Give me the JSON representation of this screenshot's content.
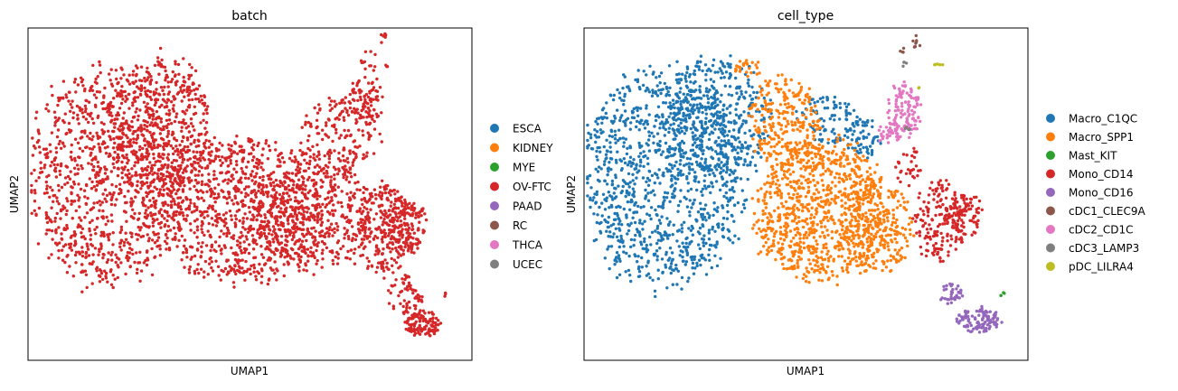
{
  "chart_data": [
    {
      "type": "scatter",
      "title": "batch",
      "xlabel": "UMAP1",
      "ylabel": "UMAP2",
      "grid": false,
      "axis_ticks": false,
      "xlim": [
        0,
        100
      ],
      "ylim": [
        0,
        100
      ],
      "legend_position": "right",
      "legend": [
        {
          "label": "ESCA",
          "color": "#1f77b4"
        },
        {
          "label": "KIDNEY",
          "color": "#ff7f0e"
        },
        {
          "label": "MYE",
          "color": "#2ca02c"
        },
        {
          "label": "OV-FTC",
          "color": "#d62728"
        },
        {
          "label": "PAAD",
          "color": "#9467bd"
        },
        {
          "label": "RC",
          "color": "#8c564b"
        },
        {
          "label": "THCA",
          "color": "#e377c2"
        },
        {
          "label": "UCEC",
          "color": "#7f7f7f"
        }
      ],
      "series": [
        {
          "name": "OV-FTC",
          "color": "#d62728",
          "regions": [
            {
              "cx": 18,
              "cy": 55,
              "rx": 18,
              "ry": 33,
              "n": 1000
            },
            {
              "cx": 30,
              "cy": 70,
              "rx": 12,
              "ry": 22,
              "n": 500
            },
            {
              "cx": 48,
              "cy": 45,
              "rx": 20,
              "ry": 22,
              "n": 900
            },
            {
              "cx": 64,
              "cy": 44,
              "rx": 14,
              "ry": 18,
              "n": 500
            },
            {
              "cx": 70,
              "cy": 68,
              "rx": 9,
              "ry": 12,
              "n": 160
            },
            {
              "cx": 76,
              "cy": 78,
              "rx": 4,
              "ry": 8,
              "n": 90
            },
            {
              "cx": 80,
              "cy": 40,
              "rx": 6,
              "ry": 14,
              "n": 220
            },
            {
              "cx": 85,
              "cy": 40,
              "rx": 5,
              "ry": 9,
              "n": 150
            },
            {
              "cx": 85,
              "cy": 20,
              "rx": 4,
              "ry": 6,
              "n": 60
            },
            {
              "cx": 89,
              "cy": 11,
              "rx": 4,
              "ry": 4,
              "n": 120
            },
            {
              "cx": 77,
              "cy": 90,
              "rx": 2,
              "ry": 4,
              "n": 12
            },
            {
              "cx": 80,
              "cy": 97,
              "rx": 1,
              "ry": 1.5,
              "n": 6
            },
            {
              "cx": 81,
              "cy": 89,
              "rx": 0.8,
              "ry": 1,
              "n": 3
            },
            {
              "cx": 94,
              "cy": 20,
              "rx": 0.8,
              "ry": 0.8,
              "n": 3
            }
          ]
        }
      ]
    },
    {
      "type": "scatter",
      "title": "cell_type",
      "xlabel": "UMAP1",
      "ylabel": "UMAP2",
      "grid": false,
      "axis_ticks": false,
      "xlim": [
        0,
        100
      ],
      "ylim": [
        0,
        100
      ],
      "legend_position": "right",
      "legend": [
        {
          "label": "Macro_C1QC",
          "color": "#1f77b4"
        },
        {
          "label": "Macro_SPP1",
          "color": "#ff7f0e"
        },
        {
          "label": "Mast_KIT",
          "color": "#2ca02c"
        },
        {
          "label": "Mono_CD14",
          "color": "#d62728"
        },
        {
          "label": "Mono_CD16",
          "color": "#9467bd"
        },
        {
          "label": "cDC1_CLEC9A",
          "color": "#8c564b"
        },
        {
          "label": "cDC2_CD1C",
          "color": "#e377c2"
        },
        {
          "label": "cDC3_LAMP3",
          "color": "#7f7f7f"
        },
        {
          "label": "pDC_LILRA4",
          "color": "#bcbd22"
        }
      ],
      "series": [
        {
          "name": "Macro_C1QC",
          "color": "#1f77b4",
          "regions": [
            {
              "cx": 18,
              "cy": 55,
              "rx": 18,
              "ry": 33,
              "n": 1100
            },
            {
              "cx": 30,
              "cy": 72,
              "rx": 12,
              "ry": 20,
              "n": 400
            },
            {
              "cx": 55,
              "cy": 72,
              "rx": 7,
              "ry": 8,
              "n": 90
            },
            {
              "cx": 63,
              "cy": 67,
              "rx": 4,
              "ry": 6,
              "n": 60
            }
          ]
        },
        {
          "name": "Macro_SPP1",
          "color": "#ff7f0e",
          "regions": [
            {
              "cx": 53,
              "cy": 45,
              "rx": 15,
              "ry": 22,
              "n": 900
            },
            {
              "cx": 45,
              "cy": 72,
              "rx": 8,
              "ry": 14,
              "n": 250
            },
            {
              "cx": 66,
              "cy": 40,
              "rx": 8,
              "ry": 14,
              "n": 250
            },
            {
              "cx": 37,
              "cy": 88,
              "rx": 3,
              "ry": 3,
              "n": 25
            }
          ]
        },
        {
          "name": "Mono_CD14",
          "color": "#d62728",
          "regions": [
            {
              "cx": 80,
              "cy": 42,
              "rx": 6,
              "ry": 12,
              "n": 180
            },
            {
              "cx": 86,
              "cy": 44,
              "rx": 4,
              "ry": 7,
              "n": 80
            },
            {
              "cx": 73,
              "cy": 58,
              "rx": 3,
              "ry": 6,
              "n": 30
            }
          ]
        },
        {
          "name": "Mono_CD16",
          "color": "#9467bd",
          "regions": [
            {
              "cx": 89,
              "cy": 12,
              "rx": 5,
              "ry": 4,
              "n": 110
            },
            {
              "cx": 83,
              "cy": 20,
              "rx": 3,
              "ry": 3,
              "n": 35
            }
          ]
        },
        {
          "name": "Mast_KIT",
          "color": "#2ca02c",
          "regions": [
            {
              "cx": 94,
              "cy": 20,
              "rx": 0.8,
              "ry": 0.6,
              "n": 4
            }
          ]
        },
        {
          "name": "cDC1_CLEC9A",
          "color": "#8c564b",
          "regions": [
            {
              "cx": 75,
              "cy": 96,
              "rx": 1,
              "ry": 2,
              "n": 8
            },
            {
              "cx": 72,
              "cy": 93,
              "rx": 0.8,
              "ry": 1,
              "n": 4
            }
          ]
        },
        {
          "name": "cDC2_CD1C",
          "color": "#e377c2",
          "regions": [
            {
              "cx": 72,
              "cy": 75,
              "rx": 4,
              "ry": 9,
              "n": 130
            },
            {
              "cx": 68,
              "cy": 68,
              "rx": 2,
              "ry": 3,
              "n": 20
            }
          ]
        },
        {
          "name": "cDC3_LAMP3",
          "color": "#7f7f7f",
          "regions": [
            {
              "cx": 72,
              "cy": 89,
              "rx": 1,
              "ry": 1,
              "n": 4
            },
            {
              "cx": 73,
              "cy": 70,
              "rx": 1,
              "ry": 1.5,
              "n": 4
            }
          ]
        },
        {
          "name": "pDC_LILRA4",
          "color": "#bcbd22",
          "regions": [
            {
              "cx": 80,
              "cy": 89,
              "rx": 1,
              "ry": 0.8,
              "n": 6
            },
            {
              "cx": 76,
              "cy": 82,
              "rx": 0.8,
              "ry": 0.8,
              "n": 2
            }
          ]
        }
      ]
    }
  ]
}
